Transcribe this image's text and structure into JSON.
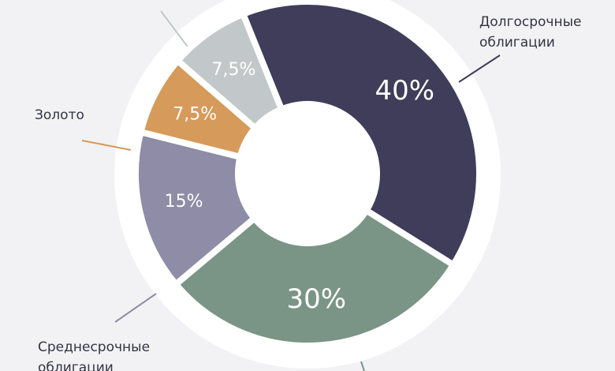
{
  "chart_data": {
    "type": "donut",
    "categories": [
      "Долгосрочные облигации",
      null,
      "Среднесрочные облигации",
      "Золото",
      null
    ],
    "values": [
      40,
      30,
      15,
      7.5,
      7.5
    ],
    "value_labels": [
      "40%",
      "30%",
      "15%",
      "7,5%",
      "7,5%"
    ],
    "colors": [
      "#3f3d59",
      "#7a9585",
      "#8e8ca6",
      "#d69a5a",
      "#c2c8c9"
    ]
  }
}
